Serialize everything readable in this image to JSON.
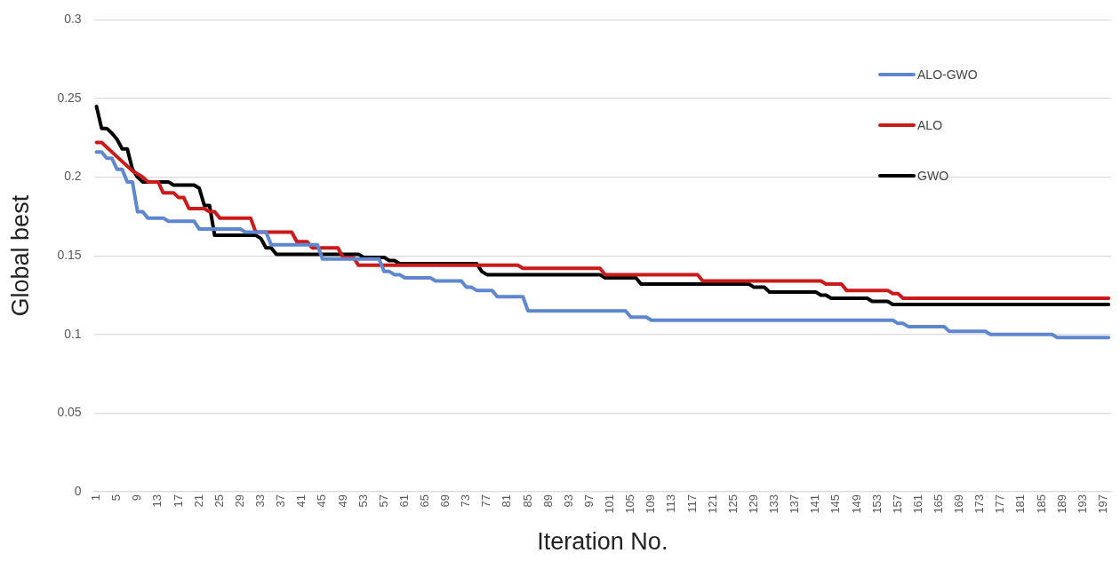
{
  "chart_data": {
    "type": "line",
    "xlabel": "Iteration No.",
    "ylabel": "Global best",
    "xlim": [
      0.5,
      198.5
    ],
    "xticks": [
      1,
      5,
      9,
      13,
      17,
      21,
      25,
      29,
      33,
      37,
      41,
      45,
      49,
      53,
      57,
      61,
      65,
      69,
      73,
      77,
      81,
      85,
      89,
      93,
      97,
      101,
      105,
      109,
      113,
      117,
      121,
      125,
      129,
      133,
      137,
      141,
      145,
      149,
      153,
      157,
      161,
      165,
      169,
      173,
      177,
      181,
      185,
      189,
      193,
      197
    ],
    "ylim": [
      0,
      0.3
    ],
    "yticks": [
      0,
      0.05,
      0.1,
      0.15,
      0.2,
      0.25,
      0.3
    ],
    "grid": "y",
    "legend": "top right",
    "marker": "none",
    "line_style": "solid",
    "series": [
      {
        "name": "ALO-GWO",
        "color": "#5f87d0",
        "x": [
          1,
          2,
          3,
          4,
          5,
          6,
          7,
          8,
          9,
          10,
          11,
          14,
          15,
          20,
          21,
          29,
          30,
          34,
          35,
          44,
          45,
          56,
          57,
          58,
          59,
          60,
          61,
          66,
          67,
          72,
          73,
          74,
          75,
          78,
          79,
          84,
          85,
          104,
          105,
          108,
          109,
          156,
          157,
          158,
          159,
          166,
          167,
          174,
          175,
          187,
          188,
          198
        ],
        "values": [
          0.216,
          0.216,
          0.212,
          0.212,
          0.205,
          0.205,
          0.197,
          0.197,
          0.178,
          0.178,
          0.174,
          0.174,
          0.172,
          0.172,
          0.167,
          0.167,
          0.165,
          0.165,
          0.157,
          0.157,
          0.148,
          0.148,
          0.14,
          0.14,
          0.138,
          0.138,
          0.136,
          0.136,
          0.134,
          0.134,
          0.13,
          0.13,
          0.128,
          0.128,
          0.124,
          0.124,
          0.115,
          0.115,
          0.111,
          0.111,
          0.109,
          0.109,
          0.107,
          0.107,
          0.105,
          0.105,
          0.102,
          0.102,
          0.1,
          0.1,
          0.098,
          0.098
        ]
      },
      {
        "name": "ALO",
        "color": "#cc1a1a",
        "x": [
          1,
          2,
          6,
          8,
          10,
          11,
          13,
          14,
          16,
          17,
          18,
          19,
          22,
          23,
          24,
          25,
          31,
          32,
          39,
          40,
          42,
          43,
          48,
          49,
          51,
          52,
          83,
          84,
          99,
          100,
          118,
          119,
          142,
          143,
          146,
          147,
          155,
          156,
          157,
          158,
          198
        ],
        "values": [
          0.222,
          0.222,
          0.21,
          0.204,
          0.2,
          0.197,
          0.197,
          0.19,
          0.19,
          0.187,
          0.187,
          0.18,
          0.18,
          0.178,
          0.178,
          0.174,
          0.174,
          0.165,
          0.165,
          0.159,
          0.159,
          0.155,
          0.155,
          0.149,
          0.149,
          0.144,
          0.144,
          0.142,
          0.142,
          0.138,
          0.138,
          0.134,
          0.134,
          0.132,
          0.132,
          0.128,
          0.128,
          0.126,
          0.126,
          0.123,
          0.123
        ]
      },
      {
        "name": "GWO",
        "color": "#000000",
        "x": [
          1,
          2,
          3,
          4,
          5,
          6,
          7,
          8,
          9,
          10,
          15,
          16,
          20,
          21,
          22,
          23,
          24,
          32,
          33,
          34,
          35,
          36,
          52,
          53,
          57,
          58,
          59,
          60,
          75,
          76,
          77,
          99,
          100,
          106,
          107,
          128,
          129,
          131,
          132,
          141,
          142,
          143,
          144,
          151,
          152,
          155,
          156,
          198
        ],
        "values": [
          0.245,
          0.231,
          0.231,
          0.228,
          0.224,
          0.218,
          0.218,
          0.205,
          0.2,
          0.197,
          0.197,
          0.195,
          0.195,
          0.193,
          0.182,
          0.182,
          0.163,
          0.163,
          0.161,
          0.155,
          0.155,
          0.151,
          0.151,
          0.149,
          0.149,
          0.147,
          0.147,
          0.145,
          0.145,
          0.14,
          0.138,
          0.138,
          0.136,
          0.136,
          0.132,
          0.132,
          0.13,
          0.13,
          0.127,
          0.127,
          0.125,
          0.125,
          0.123,
          0.123,
          0.121,
          0.121,
          0.119,
          0.119
        ]
      }
    ]
  }
}
